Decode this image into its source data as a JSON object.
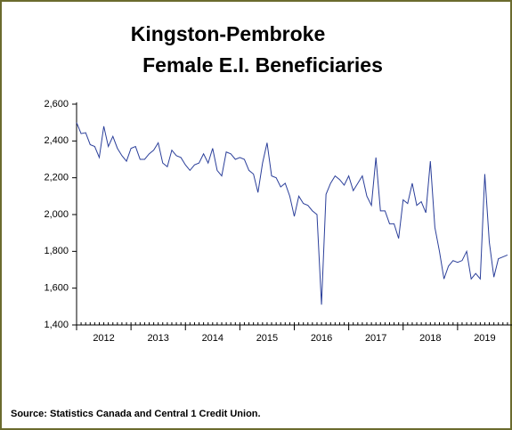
{
  "chart_data": {
    "type": "line",
    "title": "Kingston-Pembroke",
    "subtitle": "Female E.I. Beneficiaries",
    "source": "Source: Statistics Canada and Central 1 Credit Union.",
    "x": [
      2012,
      2012.083,
      2012.167,
      2012.25,
      2012.333,
      2012.417,
      2012.5,
      2012.583,
      2012.667,
      2012.75,
      2012.833,
      2012.917,
      2013,
      2013.083,
      2013.167,
      2013.25,
      2013.333,
      2013.417,
      2013.5,
      2013.583,
      2013.667,
      2013.75,
      2013.833,
      2013.917,
      2014,
      2014.083,
      2014.167,
      2014.25,
      2014.333,
      2014.417,
      2014.5,
      2014.583,
      2014.667,
      2014.75,
      2014.833,
      2014.917,
      2015,
      2015.083,
      2015.167,
      2015.25,
      2015.333,
      2015.417,
      2015.5,
      2015.583,
      2015.667,
      2015.75,
      2015.833,
      2015.917,
      2016,
      2016.083,
      2016.167,
      2016.25,
      2016.333,
      2016.417,
      2016.5,
      2016.583,
      2016.667,
      2016.75,
      2016.833,
      2016.917,
      2017,
      2017.083,
      2017.167,
      2017.25,
      2017.333,
      2017.417,
      2017.5,
      2017.583,
      2017.667,
      2017.75,
      2017.833,
      2017.917,
      2018,
      2018.083,
      2018.167,
      2018.25,
      2018.333,
      2018.417,
      2018.5,
      2018.583,
      2018.667,
      2018.75,
      2018.833,
      2018.917,
      2019,
      2019.083,
      2019.167,
      2019.25,
      2019.333,
      2019.417,
      2019.5,
      2019.583,
      2019.667,
      2019.75,
      2019.833,
      2019.917
    ],
    "series": [
      {
        "name": "Female E.I. Beneficiaries",
        "color": "#2b3f9a",
        "values": [
          2500,
          2440,
          2445,
          2380,
          2370,
          2310,
          2480,
          2370,
          2425,
          2360,
          2320,
          2290,
          2360,
          2370,
          2300,
          2300,
          2330,
          2350,
          2390,
          2280,
          2260,
          2350,
          2320,
          2310,
          2270,
          2240,
          2270,
          2280,
          2330,
          2280,
          2360,
          2240,
          2210,
          2340,
          2330,
          2300,
          2310,
          2300,
          2240,
          2220,
          2120,
          2280,
          2390,
          2210,
          2200,
          2150,
          2170,
          2100,
          1990,
          2100,
          2060,
          2050,
          2020,
          2000,
          1510,
          2110,
          2170,
          2210,
          2190,
          2160,
          2210,
          2130,
          2170,
          2210,
          2100,
          2050,
          2310,
          2020,
          2020,
          1950,
          1950,
          1870,
          2080,
          2060,
          2170,
          2050,
          2070,
          2010,
          2290,
          1930,
          1800,
          1650,
          1720,
          1750,
          1740,
          1750,
          1800,
          1650,
          1680,
          1650,
          2220,
          1850,
          1660,
          1760,
          1770,
          1780
        ]
      }
    ],
    "xlim": [
      2012,
      2020
    ],
    "xticks": [
      {
        "value": 2012.5,
        "label": "2012"
      },
      {
        "value": 2013.5,
        "label": "2013"
      },
      {
        "value": 2014.5,
        "label": "2014"
      },
      {
        "value": 2015.5,
        "label": "2015"
      },
      {
        "value": 2016.5,
        "label": "2016"
      },
      {
        "value": 2017.5,
        "label": "2017"
      },
      {
        "value": 2018.5,
        "label": "2018"
      },
      {
        "value": 2019.5,
        "label": "2019"
      }
    ],
    "ylim": [
      1400,
      2600
    ],
    "yticks": [
      {
        "value": 1400,
        "label": "1,400"
      },
      {
        "value": 1600,
        "label": "1,600"
      },
      {
        "value": 1800,
        "label": "1,800"
      },
      {
        "value": 2000,
        "label": "2,000"
      },
      {
        "value": 2200,
        "label": "2,200"
      },
      {
        "value": 2400,
        "label": "2,400"
      },
      {
        "value": 2600,
        "label": "2,600"
      }
    ],
    "grid": false
  }
}
